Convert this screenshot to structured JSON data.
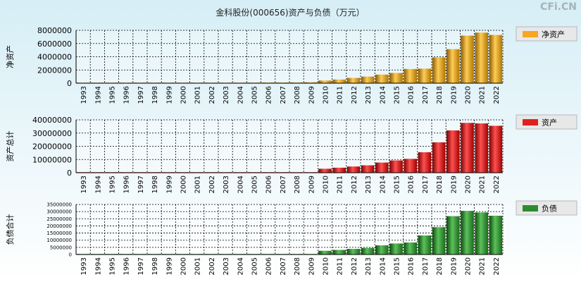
{
  "watermark": "CFi.CN",
  "chart_data": {
    "type": "bar",
    "title": "金科股份(000656)资产与负债（万元）",
    "categories": [
      "1993",
      "1994",
      "1995",
      "1996",
      "1997",
      "1998",
      "1999",
      "2000",
      "2001",
      "2002",
      "2003",
      "2004",
      "2005",
      "2006",
      "2007",
      "2008",
      "2009",
      "2010",
      "2011",
      "2012",
      "2013",
      "2014",
      "2015",
      "2016",
      "2017",
      "2018",
      "2019",
      "2020",
      "2021",
      "2022"
    ],
    "panels": [
      {
        "ylabel": "净资产",
        "legend": "净资产",
        "color": "#f5a623",
        "ylim": [
          0,
          8000000
        ],
        "yticks": [
          "8000000",
          "6000000",
          "4000000",
          "2000000",
          "0"
        ],
        "ytick_values": [
          8000000,
          6000000,
          4000000,
          2000000,
          0
        ],
        "values": [
          30000,
          35000,
          40000,
          45000,
          50000,
          55000,
          60000,
          65000,
          70000,
          75000,
          80000,
          85000,
          90000,
          95000,
          100000,
          110000,
          130000,
          400000,
          550000,
          800000,
          1000000,
          1300000,
          1550000,
          2150000,
          2200000,
          3900000,
          5150000,
          7200000,
          7650000,
          7300000
        ]
      },
      {
        "ylabel": "资产总计",
        "legend": "资产",
        "color": "#e02020",
        "ylim": [
          0,
          40000000
        ],
        "yticks": [
          "40000000",
          "30000000",
          "20000000",
          "10000000",
          "0"
        ],
        "ytick_values": [
          40000000,
          30000000,
          20000000,
          10000000,
          0
        ],
        "values": [
          100000,
          110000,
          120000,
          130000,
          140000,
          150000,
          160000,
          170000,
          180000,
          190000,
          200000,
          210000,
          220000,
          230000,
          250000,
          280000,
          350000,
          3000000,
          3800000,
          4700000,
          5600000,
          7700000,
          9300000,
          10500000,
          15500000,
          23000000,
          32000000,
          37700000,
          37300000,
          35500000
        ]
      },
      {
        "ylabel": "负债合计",
        "legend": "负债",
        "color": "#2e8b2e",
        "ylim": [
          0,
          35000000
        ],
        "yticks": [
          "35000000",
          "30000000",
          "25000000",
          "20000000",
          "15000000",
          "10000000",
          "5000000",
          "0"
        ],
        "ytick_values": [
          35000000,
          30000000,
          25000000,
          20000000,
          15000000,
          10000000,
          5000000,
          0
        ],
        "values": [
          70000,
          75000,
          80000,
          85000,
          90000,
          95000,
          100000,
          105000,
          110000,
          115000,
          120000,
          125000,
          130000,
          135000,
          150000,
          170000,
          220000,
          2600000,
          3200000,
          3900000,
          4600000,
          6400000,
          7700000,
          8400000,
          13300000,
          19100000,
          26800000,
          30500000,
          29400000,
          27100000
        ]
      }
    ]
  }
}
